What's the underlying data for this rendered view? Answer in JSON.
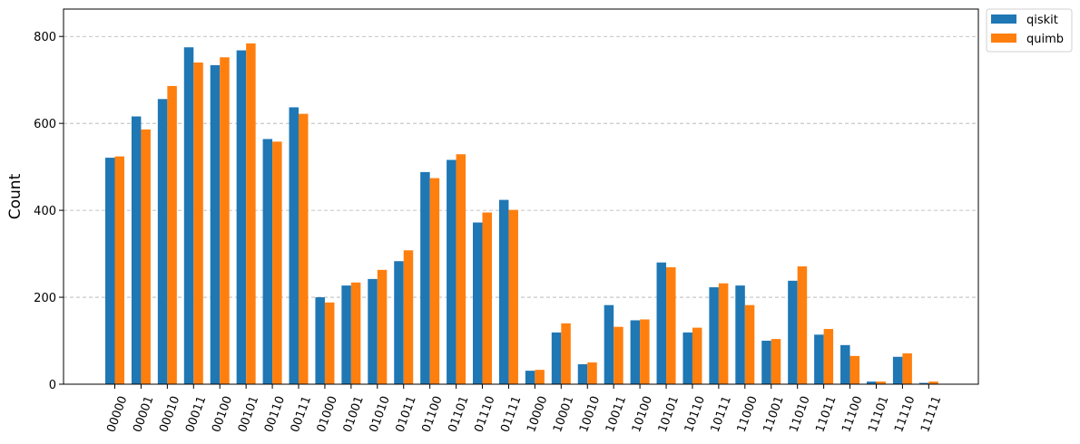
{
  "chart_data": {
    "type": "bar",
    "xlabel": "",
    "ylabel": "Count",
    "ylim": [
      0,
      863
    ],
    "yticks": [
      0,
      200,
      400,
      600,
      800
    ],
    "grid": "horizontal dashed",
    "legend_position": "top-right outside",
    "categories": [
      "00000",
      "00001",
      "00010",
      "00011",
      "00100",
      "00101",
      "00110",
      "00111",
      "01000",
      "01001",
      "01010",
      "01011",
      "01100",
      "01101",
      "01110",
      "01111",
      "10000",
      "10001",
      "10010",
      "10011",
      "10100",
      "10101",
      "10110",
      "10111",
      "11000",
      "11001",
      "11010",
      "11011",
      "11100",
      "11101",
      "11110",
      "11111"
    ],
    "series": [
      {
        "name": "qiskit",
        "color": "#1f77b4",
        "values": [
          521,
          616,
          656,
          775,
          734,
          768,
          564,
          637,
          200,
          227,
          242,
          283,
          488,
          516,
          372,
          424,
          31,
          119,
          46,
          182,
          147,
          280,
          119,
          223,
          227,
          100,
          238,
          114,
          90,
          6,
          63,
          3
        ]
      },
      {
        "name": "quimb",
        "color": "#ff7f0e",
        "values": [
          524,
          586,
          686,
          740,
          752,
          784,
          558,
          622,
          188,
          234,
          263,
          308,
          474,
          529,
          395,
          401,
          33,
          140,
          50,
          132,
          149,
          269,
          130,
          232,
          182,
          104,
          271,
          127,
          65,
          6,
          71,
          6
        ]
      }
    ]
  }
}
